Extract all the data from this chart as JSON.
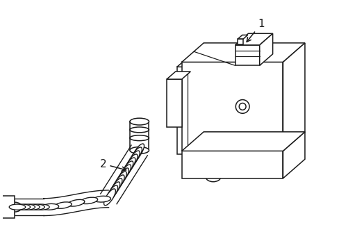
{
  "background_color": "#ffffff",
  "line_color": "#1a1a1a",
  "line_width": 1.1,
  "fig_width": 4.89,
  "fig_height": 3.6,
  "dpi": 100,
  "label_1": "1",
  "label_2": "2"
}
